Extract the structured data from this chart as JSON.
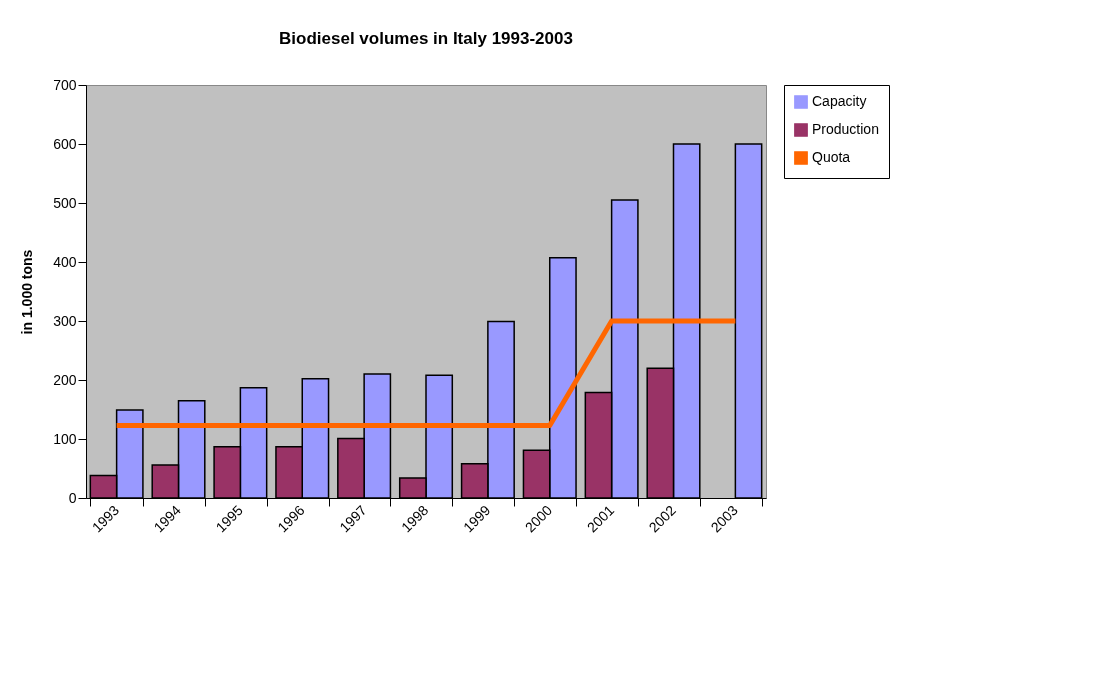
{
  "chart_data": {
    "type": "bar",
    "title": "Biodiesel volumes in Italy 1993-2003",
    "ylabel": "in 1.000 tons",
    "categories": [
      "1993",
      "1994",
      "1995",
      "1996",
      "1997",
      "1998",
      "1999",
      "2000",
      "2001",
      "2002",
      "2003"
    ],
    "series": [
      {
        "name": "Capacity",
        "color": "#9999ff",
        "values": [
          149,
          165,
          187,
          202,
          210,
          208,
          299,
          407,
          505,
          600,
          600
        ]
      },
      {
        "name": "Production",
        "color": "#993366",
        "values": [
          38,
          56,
          87,
          87,
          101,
          34,
          58,
          81,
          179,
          220,
          null
        ]
      },
      {
        "name": "Quota",
        "color": "#ff6600",
        "type": "line",
        "values": [
          123,
          123,
          123,
          123,
          123,
          123,
          123,
          123,
          300,
          300,
          300
        ]
      }
    ],
    "ylim": [
      0,
      700
    ],
    "yticks": [
      0,
      100,
      200,
      300,
      400,
      500,
      600,
      700
    ],
    "grid": false,
    "legend": "right"
  }
}
